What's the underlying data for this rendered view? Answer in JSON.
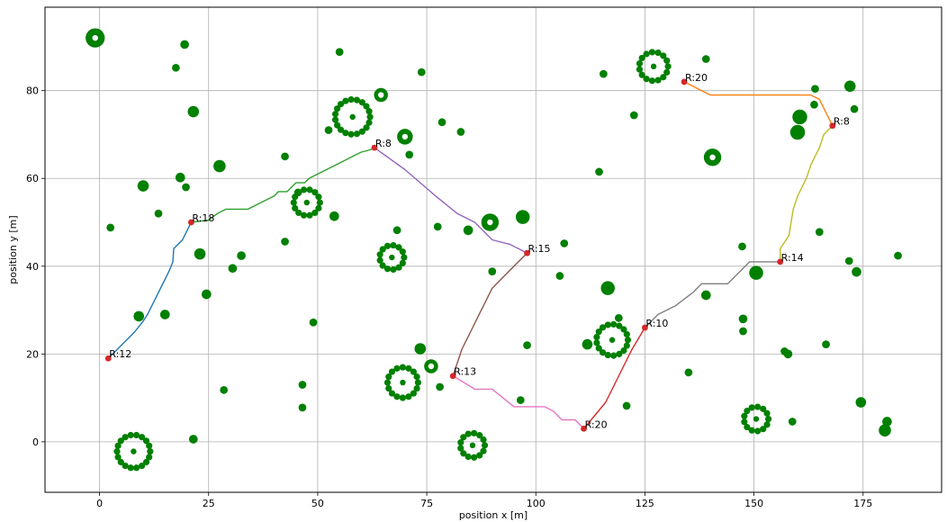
{
  "chart_data": {
    "type": "scatter",
    "xlabel": "position x [m]",
    "ylabel": "position y [m]",
    "xlim": [
      -12.5,
      193
    ],
    "ylim": [
      -11.5,
      99
    ],
    "xticks": [
      0,
      25,
      50,
      75,
      100,
      125,
      150,
      175
    ],
    "yticks": [
      0,
      20,
      40,
      60,
      80
    ],
    "grid": true,
    "colors": {
      "obstacle": "#008000",
      "waypoint": "#d62728",
      "grid": "#b0b0b0"
    },
    "obstacles": [
      {
        "x": -1,
        "y": 92,
        "r": 2.2,
        "core": "white-dot"
      },
      {
        "x": 19.5,
        "y": 90.5,
        "r": 1.0
      },
      {
        "x": 17.5,
        "y": 85.2,
        "r": 0.9
      },
      {
        "x": 21.5,
        "y": 75.2,
        "r": 1.3
      },
      {
        "x": 18.5,
        "y": 60.2,
        "r": 1.1
      },
      {
        "x": 19.8,
        "y": 58.0,
        "r": 0.9
      },
      {
        "x": 10.0,
        "y": 58.3,
        "r": 1.3
      },
      {
        "x": 27.5,
        "y": 62.8,
        "r": 1.4
      },
      {
        "x": 13.5,
        "y": 52.0,
        "r": 0.9
      },
      {
        "x": 2.5,
        "y": 48.8,
        "r": 0.9
      },
      {
        "x": 23.0,
        "y": 42.8,
        "r": 1.3
      },
      {
        "x": 32.5,
        "y": 42.4,
        "r": 1.0
      },
      {
        "x": 30.5,
        "y": 39.5,
        "r": 1.0
      },
      {
        "x": 24.5,
        "y": 33.6,
        "r": 1.1
      },
      {
        "x": 9.0,
        "y": 28.6,
        "r": 1.2
      },
      {
        "x": 15.0,
        "y": 29.0,
        "r": 1.1
      },
      {
        "x": 28.5,
        "y": 11.8,
        "r": 0.9
      },
      {
        "x": 21.5,
        "y": 0.6,
        "r": 1.0
      },
      {
        "x": 7.8,
        "y": -2.2,
        "r": 3.8,
        "core": "green-dot"
      },
      {
        "x": 55.0,
        "y": 88.8,
        "r": 0.9
      },
      {
        "x": 58.0,
        "y": 74.0,
        "r": 4.0,
        "core": "green-dot"
      },
      {
        "x": 64.5,
        "y": 79.0,
        "r": 1.6,
        "core": "white-dot"
      },
      {
        "x": 42.5,
        "y": 65.0,
        "r": 0.9
      },
      {
        "x": 52.5,
        "y": 71.0,
        "r": 0.9
      },
      {
        "x": 70.0,
        "y": 69.5,
        "r": 1.8,
        "core": "white-dot"
      },
      {
        "x": 71.0,
        "y": 65.4,
        "r": 0.9
      },
      {
        "x": 73.8,
        "y": 84.2,
        "r": 0.9
      },
      {
        "x": 78.5,
        "y": 72.8,
        "r": 0.9
      },
      {
        "x": 82.8,
        "y": 70.6,
        "r": 0.9
      },
      {
        "x": 47.5,
        "y": 54.5,
        "r": 3.0,
        "core": "green-dot"
      },
      {
        "x": 53.8,
        "y": 51.4,
        "r": 1.1
      },
      {
        "x": 42.5,
        "y": 45.6,
        "r": 0.9
      },
      {
        "x": 45.5,
        "y": 56.8,
        "r": 0.9
      },
      {
        "x": 67.0,
        "y": 42.0,
        "r": 2.8,
        "core": "green-dot"
      },
      {
        "x": 68.2,
        "y": 48.2,
        "r": 0.9
      },
      {
        "x": 77.5,
        "y": 49.0,
        "r": 0.9
      },
      {
        "x": 84.5,
        "y": 48.2,
        "r": 1.1
      },
      {
        "x": 89.5,
        "y": 50.0,
        "r": 2.0,
        "core": "white-dot"
      },
      {
        "x": 97.0,
        "y": 51.2,
        "r": 1.6
      },
      {
        "x": 106.5,
        "y": 45.2,
        "r": 0.9
      },
      {
        "x": 90.0,
        "y": 38.8,
        "r": 0.9
      },
      {
        "x": 105.5,
        "y": 37.8,
        "r": 0.9
      },
      {
        "x": 49.0,
        "y": 27.2,
        "r": 0.9
      },
      {
        "x": 46.5,
        "y": 13.0,
        "r": 0.9
      },
      {
        "x": 46.5,
        "y": 7.8,
        "r": 0.9
      },
      {
        "x": 69.5,
        "y": 13.5,
        "r": 3.5,
        "core": "green-dot"
      },
      {
        "x": 73.5,
        "y": 21.2,
        "r": 1.3
      },
      {
        "x": 76.0,
        "y": 17.2,
        "r": 1.6,
        "core": "white-dot"
      },
      {
        "x": 78.0,
        "y": 12.5,
        "r": 0.9
      },
      {
        "x": 85.5,
        "y": -0.8,
        "r": 2.8,
        "core": "green-dot"
      },
      {
        "x": 96.5,
        "y": 9.5,
        "r": 0.9
      },
      {
        "x": 98.0,
        "y": 22.0,
        "r": 0.9
      },
      {
        "x": 115.5,
        "y": 83.8,
        "r": 0.9
      },
      {
        "x": 127.0,
        "y": 85.5,
        "r": 3.3,
        "core": "green-dot"
      },
      {
        "x": 139.0,
        "y": 87.2,
        "r": 0.9
      },
      {
        "x": 122.5,
        "y": 74.4,
        "r": 0.9
      },
      {
        "x": 114.5,
        "y": 61.5,
        "r": 0.9
      },
      {
        "x": 140.5,
        "y": 64.8,
        "r": 2.0,
        "core": "white-dot"
      },
      {
        "x": 116.5,
        "y": 35.0,
        "r": 1.6
      },
      {
        "x": 117.5,
        "y": 23.2,
        "r": 3.6,
        "core": "green-dot"
      },
      {
        "x": 111.8,
        "y": 22.2,
        "r": 1.2
      },
      {
        "x": 119.0,
        "y": 28.2,
        "r": 0.9
      },
      {
        "x": 120.8,
        "y": 8.2,
        "r": 0.9
      },
      {
        "x": 135.0,
        "y": 15.8,
        "r": 0.9
      },
      {
        "x": 139.0,
        "y": 33.4,
        "r": 1.1
      },
      {
        "x": 147.5,
        "y": 28.0,
        "r": 1.0
      },
      {
        "x": 147.5,
        "y": 25.2,
        "r": 0.9
      },
      {
        "x": 147.3,
        "y": 44.5,
        "r": 0.9
      },
      {
        "x": 150.5,
        "y": 38.5,
        "r": 1.6
      },
      {
        "x": 150.5,
        "y": 5.2,
        "r": 2.8,
        "core": "green-dot"
      },
      {
        "x": 158.8,
        "y": 4.6,
        "r": 0.9
      },
      {
        "x": 157.0,
        "y": 20.6,
        "r": 0.9
      },
      {
        "x": 157.8,
        "y": 20.0,
        "r": 1.0
      },
      {
        "x": 166.5,
        "y": 22.2,
        "r": 0.9
      },
      {
        "x": 165.0,
        "y": 47.8,
        "r": 0.9
      },
      {
        "x": 164.0,
        "y": 80.4,
        "r": 0.9
      },
      {
        "x": 163.8,
        "y": 76.8,
        "r": 0.9
      },
      {
        "x": 160.5,
        "y": 74.0,
        "r": 1.7
      },
      {
        "x": 160.0,
        "y": 70.5,
        "r": 1.7
      },
      {
        "x": 172.0,
        "y": 81.0,
        "r": 1.3
      },
      {
        "x": 173.0,
        "y": 75.8,
        "r": 0.9
      },
      {
        "x": 171.8,
        "y": 41.2,
        "r": 0.9
      },
      {
        "x": 173.5,
        "y": 38.7,
        "r": 1.1
      },
      {
        "x": 183.0,
        "y": 42.4,
        "r": 0.9
      },
      {
        "x": 174.5,
        "y": 9.0,
        "r": 1.2
      },
      {
        "x": 180.5,
        "y": 4.6,
        "r": 1.1
      },
      {
        "x": 180.0,
        "y": 2.6,
        "r": 1.4
      }
    ],
    "series": [
      {
        "color": "#1f77b4",
        "points": [
          [
            2,
            19
          ],
          [
            8,
            25
          ],
          [
            10,
            27.5
          ],
          [
            11,
            29
          ],
          [
            12,
            31
          ],
          [
            13,
            33
          ],
          [
            14,
            35
          ],
          [
            15,
            37
          ],
          [
            16,
            39
          ],
          [
            16.8,
            41
          ],
          [
            17,
            44
          ],
          [
            19,
            46
          ],
          [
            20,
            48
          ],
          [
            21,
            50
          ]
        ]
      },
      {
        "color": "#2ca02c",
        "points": [
          [
            21,
            50
          ],
          [
            25,
            50.5
          ],
          [
            27,
            52
          ],
          [
            29,
            53
          ],
          [
            34,
            53
          ],
          [
            36,
            54
          ],
          [
            38,
            55
          ],
          [
            40,
            56
          ],
          [
            41,
            57
          ],
          [
            43,
            57
          ],
          [
            45,
            59
          ],
          [
            47,
            59
          ],
          [
            48,
            60
          ],
          [
            50,
            61
          ],
          [
            52,
            62
          ],
          [
            54,
            63
          ],
          [
            56,
            64
          ],
          [
            58,
            65
          ],
          [
            60,
            66
          ],
          [
            62,
            66.5
          ],
          [
            63,
            67
          ]
        ]
      },
      {
        "color": "#9467bd",
        "points": [
          [
            63,
            67
          ],
          [
            70,
            62
          ],
          [
            77,
            56
          ],
          [
            82,
            52
          ],
          [
            84,
            51
          ],
          [
            86,
            50
          ],
          [
            88,
            48
          ],
          [
            90,
            46
          ],
          [
            94,
            45
          ],
          [
            96,
            44
          ],
          [
            98,
            43
          ]
        ]
      },
      {
        "color": "#8c564b",
        "points": [
          [
            98,
            43
          ],
          [
            95,
            40
          ],
          [
            90,
            35
          ],
          [
            89,
            33
          ],
          [
            88,
            31
          ],
          [
            87,
            29
          ],
          [
            86,
            27
          ],
          [
            85,
            25
          ],
          [
            84,
            23
          ],
          [
            83,
            21
          ],
          [
            81,
            15
          ]
        ]
      },
      {
        "color": "#e377c2",
        "points": [
          [
            81,
            15
          ],
          [
            86,
            12
          ],
          [
            90,
            12
          ],
          [
            95,
            8
          ],
          [
            102,
            8
          ],
          [
            104,
            7
          ],
          [
            106,
            5
          ],
          [
            109,
            5
          ],
          [
            111,
            3
          ]
        ]
      },
      {
        "color": "#d62728",
        "points": [
          [
            111,
            3
          ],
          [
            116,
            9
          ],
          [
            118,
            13
          ],
          [
            120,
            17
          ],
          [
            122,
            21
          ],
          [
            125,
            26
          ]
        ]
      },
      {
        "color": "#7f7f7f",
        "points": [
          [
            125,
            26
          ],
          [
            128,
            29
          ],
          [
            132,
            31
          ],
          [
            136,
            34
          ],
          [
            138,
            36
          ],
          [
            144,
            36
          ],
          [
            149,
            41
          ],
          [
            156,
            41
          ]
        ]
      },
      {
        "color": "#bcbd22",
        "points": [
          [
            156,
            41
          ],
          [
            156,
            44
          ],
          [
            158,
            47
          ],
          [
            159,
            53
          ],
          [
            160,
            56
          ],
          [
            162,
            60
          ],
          [
            163,
            63
          ],
          [
            165,
            67
          ],
          [
            166,
            70
          ],
          [
            168,
            72
          ]
        ]
      },
      {
        "color": "#ff7f0e",
        "points": [
          [
            168,
            72
          ],
          [
            165,
            78
          ],
          [
            163,
            79
          ],
          [
            150,
            79
          ],
          [
            140,
            79
          ],
          [
            138,
            80
          ],
          [
            136,
            81
          ],
          [
            134,
            82
          ]
        ]
      }
    ],
    "waypoints": [
      {
        "x": 2,
        "y": 19,
        "label": "R:12"
      },
      {
        "x": 21,
        "y": 50,
        "label": "R:18"
      },
      {
        "x": 63,
        "y": 67,
        "label": "R:8"
      },
      {
        "x": 98,
        "y": 43,
        "label": "R:15"
      },
      {
        "x": 81,
        "y": 15,
        "label": "R:13"
      },
      {
        "x": 111,
        "y": 3,
        "label": "R:20"
      },
      {
        "x": 125,
        "y": 26,
        "label": "R:10"
      },
      {
        "x": 156,
        "y": 41,
        "label": "R:14"
      },
      {
        "x": 168,
        "y": 72,
        "label": "R:8"
      },
      {
        "x": 134,
        "y": 82,
        "label": "R:20"
      }
    ]
  }
}
